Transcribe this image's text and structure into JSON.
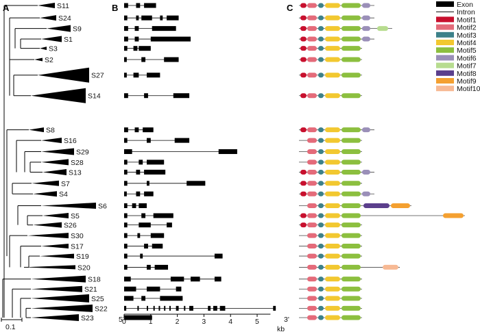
{
  "panels": {
    "a": "A",
    "b": "B",
    "c": "C"
  },
  "scale_bar": "0.1",
  "axis": {
    "unit": "kb",
    "left_end": "5'",
    "right_end": "3'",
    "ticks": [
      "0",
      "1",
      "2",
      "3",
      "4",
      "5"
    ]
  },
  "colors": {
    "Motif1": "#c8102e",
    "Motif2": "#e46b7a",
    "Motif3": "#3c8189",
    "Motif4": "#f2c830",
    "Motif5": "#8cbf3f",
    "Motif6": "#9a8fb8",
    "Motif7": "#b7dc8f",
    "Motif8": "#5b3f8c",
    "Motif9": "#f4a030",
    "Motif10": "#f7b994",
    "exon": "#000000",
    "intron": "#000000"
  },
  "legend": [
    "Exon",
    "Intron",
    "Motif1",
    "Motif2",
    "Motif3",
    "Motif4",
    "Motif5",
    "Motif6",
    "Motif7",
    "Motif8",
    "Motif9",
    "Motif10"
  ],
  "clades": [
    {
      "label": "S11",
      "exons": [
        [
          0,
          0.15
        ],
        [
          0.45,
          0.6
        ],
        [
          0.75,
          1.2
        ]
      ],
      "motifs": [
        "Motif1",
        "Motif2",
        "Motif3",
        "Motif4",
        "Motif5",
        "Motif6"
      ]
    },
    {
      "label": "S24",
      "exons": [
        [
          0,
          0.12
        ],
        [
          0.45,
          0.55
        ],
        [
          0.65,
          1.05
        ],
        [
          1.35,
          1.45
        ],
        [
          1.6,
          2.05
        ]
      ],
      "motifs": [
        "Motif1",
        "Motif2",
        "Motif3",
        "Motif4",
        "Motif5",
        "Motif6"
      ]
    },
    {
      "label": "S9",
      "exons": [
        [
          0,
          0.15
        ],
        [
          0.4,
          0.55
        ],
        [
          1.05,
          1.95
        ]
      ],
      "motifs": [
        "Motif1",
        "Motif2",
        "Motif3",
        "Motif4",
        "Motif5",
        "Motif6",
        "Motif7"
      ]
    },
    {
      "label": "S1",
      "exons": [
        [
          0,
          0.15
        ],
        [
          0.4,
          0.55
        ],
        [
          1.0,
          2.5
        ]
      ],
      "motifs": [
        "Motif1",
        "Motif2",
        "Motif3",
        "Motif4",
        "Motif5",
        "Motif6"
      ]
    },
    {
      "label": "S3",
      "exons": [
        [
          0,
          0.12
        ],
        [
          0.35,
          0.5
        ],
        [
          0.55,
          1.0
        ]
      ],
      "motifs": [
        "Motif1",
        "Motif2",
        "Motif3",
        "Motif4",
        "Motif5"
      ]
    },
    {
      "label": "S2",
      "exons": [
        [
          0,
          0.1
        ],
        [
          0.65,
          0.8
        ],
        [
          1.5,
          2.05
        ]
      ],
      "motifs": [
        "Motif1",
        "Motif2",
        "Motif3",
        "Motif4",
        "Motif5"
      ]
    },
    {
      "label": "S27",
      "exons": [
        [
          0,
          0.1
        ],
        [
          0.35,
          0.55
        ],
        [
          0.85,
          1.35
        ]
      ],
      "motifs": [
        "Motif1",
        "Motif2",
        "Motif3",
        "Motif4",
        "Motif5"
      ]
    },
    {
      "label": "S14",
      "exons": [
        [
          0,
          0.15
        ],
        [
          0.75,
          0.9
        ],
        [
          1.85,
          2.45
        ]
      ],
      "motifs": [
        "Motif1",
        "Motif2",
        "Motif3",
        "Motif4",
        "Motif5"
      ]
    },
    {
      "label": "S8",
      "exons": [
        [
          0,
          0.15
        ],
        [
          0.4,
          0.55
        ],
        [
          0.7,
          1.1
        ]
      ],
      "motifs": [
        "Motif1",
        "Motif2",
        "Motif3",
        "Motif4",
        "Motif5",
        "Motif6"
      ]
    },
    {
      "label": "S16",
      "exons": [
        [
          0,
          0.12
        ],
        [
          0.85,
          1.0
        ],
        [
          1.9,
          2.45
        ]
      ],
      "motifs": [
        "Motif2",
        "Motif3",
        "Motif4",
        "Motif5"
      ]
    },
    {
      "label": "S29",
      "exons": [
        [
          0,
          0.3
        ],
        [
          3.55,
          4.25
        ]
      ],
      "motifs": [
        "Motif2",
        "Motif3",
        "Motif4",
        "Motif5"
      ]
    },
    {
      "label": "S28",
      "exons": [
        [
          0,
          0.12
        ],
        [
          0.55,
          0.7
        ],
        [
          0.85,
          1.5
        ]
      ],
      "motifs": [
        "Motif2",
        "Motif3",
        "Motif4",
        "Motif5"
      ]
    },
    {
      "label": "S13",
      "exons": [
        [
          0,
          0.12
        ],
        [
          0.45,
          0.6
        ],
        [
          0.75,
          1.55
        ]
      ],
      "motifs": [
        "Motif1",
        "Motif2",
        "Motif3",
        "Motif4",
        "Motif5",
        "Motif6"
      ]
    },
    {
      "label": "S7",
      "exons": [
        [
          0,
          0.12
        ],
        [
          0.85,
          0.95
        ],
        [
          2.35,
          3.05
        ]
      ],
      "motifs": [
        "Motif1",
        "Motif2",
        "Motif3",
        "Motif4",
        "Motif5"
      ]
    },
    {
      "label": "S4",
      "exons": [
        [
          0,
          0.1
        ],
        [
          0.45,
          0.6
        ],
        [
          0.75,
          1.1
        ]
      ],
      "motifs": [
        "Motif1",
        "Motif2",
        "Motif3",
        "Motif4",
        "Motif5",
        "Motif6"
      ]
    },
    {
      "label": "S6",
      "exons": [
        [
          0,
          0.12
        ],
        [
          0.3,
          0.45
        ],
        [
          0.55,
          0.85
        ]
      ],
      "motifs": [
        "Motif2",
        "Motif3",
        "Motif4",
        "Motif5",
        "Motif8",
        "Motif9"
      ]
    },
    {
      "label": "S5",
      "exons": [
        [
          0,
          0.12
        ],
        [
          0.65,
          0.8
        ],
        [
          1.1,
          1.85
        ]
      ],
      "motifs": [
        "Motif1",
        "Motif2",
        "Motif3",
        "Motif4",
        "Motif5",
        "Motif9"
      ]
    },
    {
      "label": "S26",
      "exons": [
        [
          0,
          0.12
        ],
        [
          0.55,
          1.0
        ],
        [
          1.6,
          1.8
        ]
      ],
      "motifs": [
        "Motif1",
        "Motif2",
        "Motif3",
        "Motif4",
        "Motif5"
      ]
    },
    {
      "label": "S30",
      "exons": [
        [
          0,
          0.12
        ],
        [
          0.5,
          0.6
        ],
        [
          1.0,
          1.5
        ]
      ],
      "motifs": [
        "Motif2",
        "Motif3",
        "Motif4",
        "Motif5"
      ]
    },
    {
      "label": "S17",
      "exons": [
        [
          0,
          0.12
        ],
        [
          0.75,
          0.9
        ],
        [
          1.05,
          1.45
        ]
      ],
      "motifs": [
        "Motif2",
        "Motif3",
        "Motif4",
        "Motif5"
      ]
    },
    {
      "label": "S19",
      "exons": [
        [
          0,
          0.12
        ],
        [
          0.6,
          0.7
        ],
        [
          3.4,
          3.7
        ]
      ],
      "motifs": [
        "Motif2",
        "Motif3",
        "Motif4",
        "Motif5"
      ]
    },
    {
      "label": "S20",
      "exons": [
        [
          0,
          0.12
        ],
        [
          0.85,
          1.0
        ],
        [
          1.15,
          1.65
        ]
      ],
      "motifs": [
        "Motif2",
        "Motif3",
        "Motif4",
        "Motif5",
        "Motif10"
      ]
    },
    {
      "label": "S18",
      "exons": [
        [
          0,
          0.25
        ],
        [
          1.75,
          2.25
        ],
        [
          2.5,
          2.85
        ],
        [
          3.4,
          3.65
        ]
      ],
      "motifs": [
        "Motif2",
        "Motif3",
        "Motif4",
        "Motif5"
      ]
    },
    {
      "label": "S21",
      "exons": [
        [
          0,
          0.45
        ],
        [
          0.85,
          1.35
        ],
        [
          1.95,
          2.15
        ]
      ],
      "motifs": [
        "Motif2",
        "Motif3",
        "Motif4",
        "Motif5"
      ]
    },
    {
      "label": "S25",
      "exons": [
        [
          0,
          0.35
        ],
        [
          0.65,
          0.8
        ],
        [
          1.35,
          2.2
        ]
      ],
      "motifs": [
        "Motif2",
        "Motif3",
        "Motif4",
        "Motif5"
      ]
    },
    {
      "label": "S22",
      "exons": [
        [
          0,
          0.08
        ],
        [
          0.5,
          0.55
        ],
        [
          0.85,
          0.9
        ],
        [
          1.1,
          1.15
        ],
        [
          1.3,
          1.35
        ],
        [
          1.5,
          1.55
        ],
        [
          1.7,
          1.75
        ],
        [
          1.95,
          2.05
        ],
        [
          2.25,
          2.3
        ],
        [
          2.45,
          2.6
        ],
        [
          3.15,
          3.25
        ],
        [
          3.35,
          3.5
        ],
        [
          3.6,
          3.8
        ],
        [
          5.6,
          5.7
        ]
      ],
      "motifs": [
        "Motif2",
        "Motif3",
        "Motif4",
        "Motif5"
      ]
    },
    {
      "label": "S23",
      "exons": [
        [
          0,
          1.05
        ]
      ],
      "motifs": [
        "Motif2",
        "Motif3",
        "Motif4",
        "Motif5"
      ]
    }
  ]
}
